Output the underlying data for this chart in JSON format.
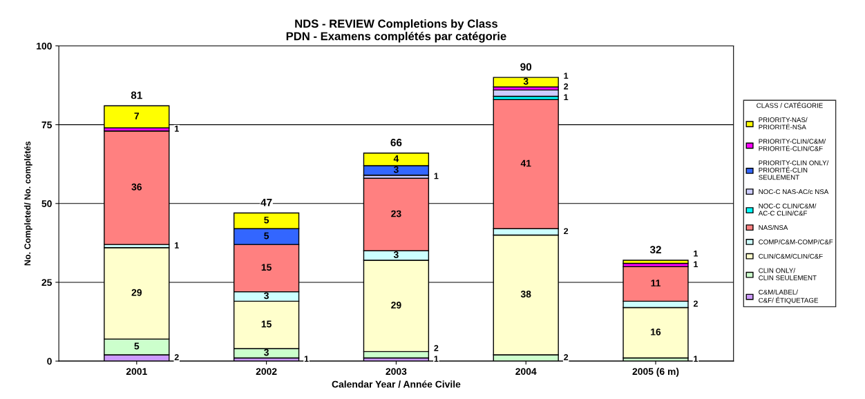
{
  "chart_data": {
    "type": "bar",
    "stacked": true,
    "title": "NDS - REVIEW Completions by Class\nPDN - Examens complétés par catégorie",
    "xlabel": "Calendar Year / Année Civile",
    "ylabel": "No. Completed/ No. complétés",
    "legend_title": "CLASS / CATÉGORIE",
    "legend": "right",
    "grid": "y",
    "data_labels": true,
    "categories": [
      "2001",
      "2002",
      "2003",
      "2004",
      "2005 (6 m)"
    ],
    "ylim": [
      0,
      100
    ],
    "yticks": [
      0,
      25,
      50,
      75,
      100
    ],
    "series": [
      {
        "name": "C&M/LABEL/\nC&F/ ÉTIQUETAGE",
        "color": "#cc99ff",
        "values": [
          2,
          1,
          1,
          null,
          null
        ]
      },
      {
        "name": "CLIN ONLY/\nCLIN SEULEMENT",
        "color": "#ccffcc",
        "values": [
          5,
          3,
          2,
          2,
          1
        ]
      },
      {
        "name": "CLIN/C&M/CLIN/C&F",
        "color": "#ffffcc",
        "values": [
          29,
          15,
          29,
          38,
          16
        ]
      },
      {
        "name": "COMP/C&M-COMP/C&F",
        "color": "#ccffff",
        "values": [
          1,
          3,
          3,
          2,
          2
        ]
      },
      {
        "name": "NAS/NSA",
        "color": "#ff8080",
        "values": [
          36,
          15,
          23,
          41,
          11
        ]
      },
      {
        "name": "NOC-C CLIN/C&M/\nAC-C CLIN/C&F",
        "color": "#00ffff",
        "values": [
          null,
          null,
          null,
          1,
          null
        ]
      },
      {
        "name": "NOC-C NAS-AC/c NSA",
        "color": "#ccccff",
        "values": [
          null,
          null,
          1,
          2,
          null
        ]
      },
      {
        "name": "PRIORITY-CLIN ONLY/\nPRIORITÉ-CLIN\nSEULEMENT",
        "color": "#3366ff",
        "values": [
          null,
          5,
          3,
          null,
          null
        ]
      },
      {
        "name": "PRIORITY-CLIN/C&M/\nPRIORITÉ-CLIN/C&F",
        "color": "#ff00ff",
        "values": [
          1,
          null,
          null,
          1,
          1
        ]
      },
      {
        "name": "PRIORITY-NAS/\nPRIORITÉ-NSA",
        "color": "#ffff00",
        "values": [
          7,
          5,
          4,
          3,
          1
        ]
      }
    ],
    "totals": [
      "81",
      "47",
      "66",
      "90",
      "32"
    ]
  }
}
